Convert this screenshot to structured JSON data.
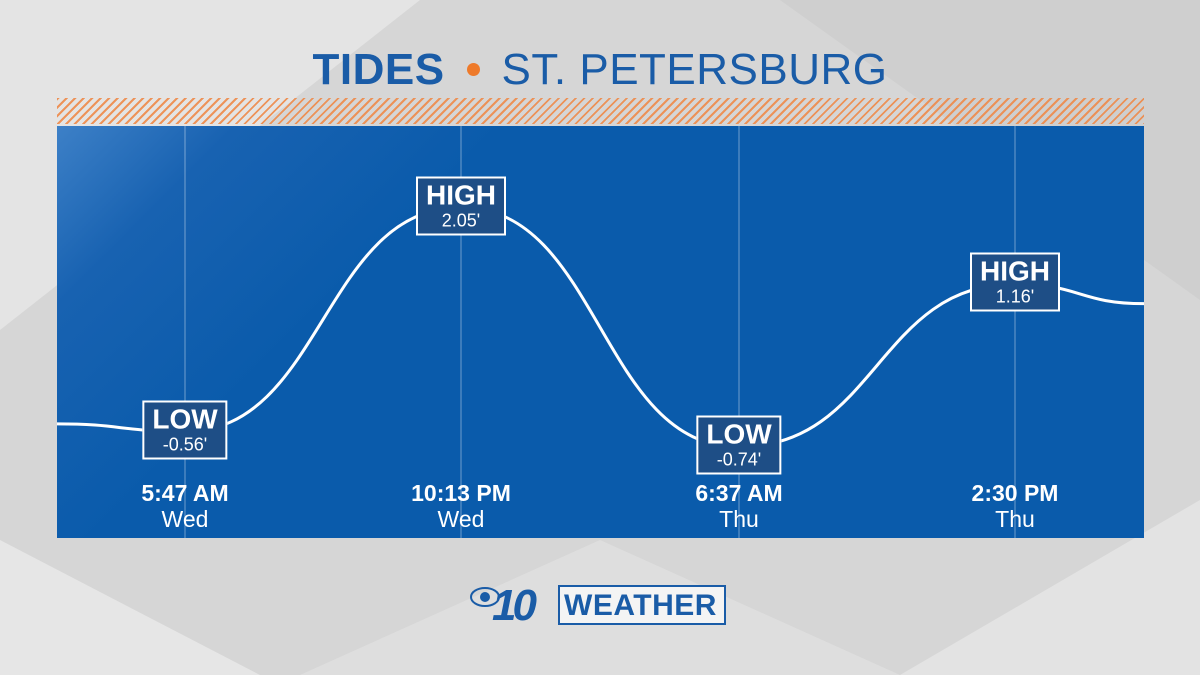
{
  "header": {
    "title_bold": "TIDES",
    "title_rest": "ST. PETERSBURG"
  },
  "colors": {
    "brand_blue": "#1a5ca7",
    "accent_orange": "#ee7a2a",
    "panel_blue": "#0a5bab",
    "label_bg": "#1e4e86",
    "curve": "#ffffff"
  },
  "chart_data": {
    "type": "line",
    "title": "TIDES • ST. PETERSBURG",
    "xlabel": "",
    "ylabel": "",
    "ylim": [
      -1.8,
      3.0
    ],
    "grid": "vertical",
    "series": [
      {
        "values": [
          -0.47,
          -0.56,
          2.05,
          -0.74,
          1.16,
          0.93
        ]
      }
    ],
    "points": [
      {
        "kind": "LOW",
        "height": "-0.56'",
        "value": -0.56,
        "time": "5:47 AM",
        "day": "Wed"
      },
      {
        "kind": "HIGH",
        "height": "2.05'",
        "value": 2.05,
        "time": "10:13 PM",
        "day": "Wed"
      },
      {
        "kind": "LOW",
        "height": "-0.74'",
        "value": -0.74,
        "time": "6:37 AM",
        "day": "Thu"
      },
      {
        "kind": "HIGH",
        "height": "1.16'",
        "value": 1.16,
        "time": "2:30 PM",
        "day": "Thu"
      }
    ]
  },
  "logo": {
    "number": "10",
    "word": "WEATHER"
  }
}
